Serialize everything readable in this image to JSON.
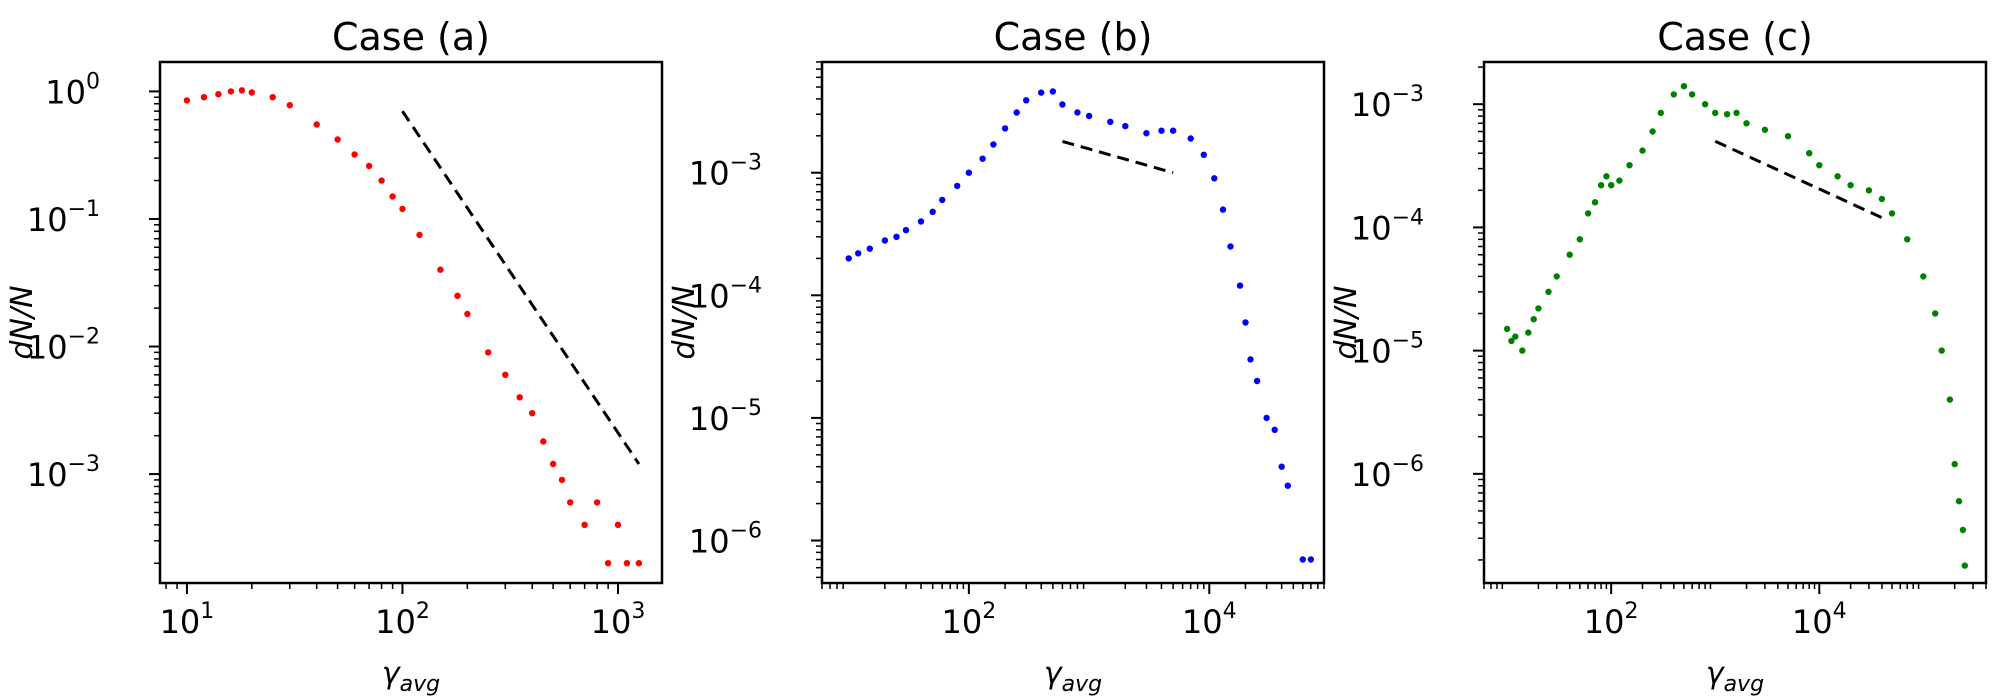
{
  "chart_data": [
    {
      "type": "scatter",
      "title": "Case (a)",
      "xlabel": "γ",
      "xlabel_sub": "avg",
      "ylabel": "dN/N",
      "xscale": "log",
      "yscale": "log",
      "xlim": [
        7.5,
        1600
      ],
      "ylim": [
        0.00014,
        1.7
      ],
      "xticks": [
        {
          "v": 10,
          "base": "10",
          "exp": "1"
        },
        {
          "v": 100,
          "base": "10",
          "exp": "2"
        },
        {
          "v": 1000,
          "base": "10",
          "exp": "3"
        }
      ],
      "yticks": [
        {
          "v": 1,
          "base": "10",
          "exp": "0"
        },
        {
          "v": 0.1,
          "base": "10",
          "exp": "−1"
        },
        {
          "v": 0.01,
          "base": "10",
          "exp": "−2"
        },
        {
          "v": 0.001,
          "base": "10",
          "exp": "−3"
        }
      ],
      "color": "#ff0000",
      "series": [
        {
          "name": "Case (a)",
          "x": [
            10,
            12,
            14,
            16,
            18,
            20,
            25,
            30,
            40,
            50,
            60,
            70,
            80,
            90,
            100,
            120,
            150,
            180,
            200,
            250,
            300,
            350,
            400,
            450,
            500,
            550,
            600,
            700,
            800,
            900,
            1000,
            1100,
            1250
          ],
          "y": [
            0.85,
            0.9,
            0.95,
            1.0,
            1.02,
            0.98,
            0.9,
            0.78,
            0.55,
            0.42,
            0.32,
            0.26,
            0.2,
            0.15,
            0.12,
            0.075,
            0.04,
            0.025,
            0.018,
            0.009,
            0.006,
            0.004,
            0.003,
            0.0018,
            0.0012,
            0.0009,
            0.0006,
            0.0004,
            0.0006,
            0.0002,
            0.0004,
            0.0002,
            0.0002
          ]
        }
      ],
      "reference_line": {
        "x": [
          100,
          1250
        ],
        "y": [
          0.7,
          0.0012
        ],
        "style": "dashed",
        "color": "#000000"
      }
    },
    {
      "type": "scatter",
      "title": "Case (b)",
      "xlabel": "γ",
      "xlabel_sub": "avg",
      "ylabel": "dN/N",
      "xscale": "log",
      "yscale": "log",
      "xlim": [
        6,
        90000
      ],
      "ylim": [
        4.5e-07,
        0.008
      ],
      "xticks": [
        {
          "v": 100,
          "base": "10",
          "exp": "2"
        },
        {
          "v": 10000,
          "base": "10",
          "exp": "4"
        }
      ],
      "yticks": [
        {
          "v": 0.001,
          "base": "10",
          "exp": "−3"
        },
        {
          "v": 0.0001,
          "base": "10",
          "exp": "−4"
        },
        {
          "v": 1e-05,
          "base": "10",
          "exp": "−5"
        },
        {
          "v": 1e-06,
          "base": "10",
          "exp": "−6"
        }
      ],
      "color": "#0000ff",
      "series": [
        {
          "name": "Case (b)",
          "x": [
            10,
            12,
            15,
            20,
            25,
            30,
            40,
            50,
            60,
            80,
            100,
            130,
            160,
            200,
            250,
            300,
            400,
            500,
            600,
            800,
            1000,
            1500,
            2000,
            3000,
            4000,
            5000,
            7000,
            9000,
            11000,
            13000,
            15000,
            18000,
            20000,
            22000,
            25000,
            30000,
            35000,
            40000,
            45000,
            60000,
            70000
          ],
          "y": [
            0.0002,
            0.00022,
            0.00024,
            0.00028,
            0.0003,
            0.00034,
            0.0004,
            0.00048,
            0.0006,
            0.00078,
            0.001,
            0.0013,
            0.0017,
            0.0023,
            0.0031,
            0.0039,
            0.0045,
            0.0046,
            0.0036,
            0.0031,
            0.0029,
            0.0026,
            0.0024,
            0.0021,
            0.0022,
            0.0022,
            0.0019,
            0.0014,
            0.0009,
            0.0005,
            0.00025,
            0.00012,
            6e-05,
            3e-05,
            2e-05,
            1e-05,
            8e-06,
            4e-06,
            2.8e-06,
            7e-07,
            7e-07
          ]
        }
      ],
      "reference_line": {
        "x": [
          600,
          5000
        ],
        "y": [
          0.0018,
          0.001
        ],
        "style": "dashed",
        "color": "#000000"
      }
    },
    {
      "type": "scatter",
      "title": "Case (c)",
      "xlabel": "γ",
      "xlabel_sub": "avg",
      "ylabel": "dN/N",
      "xscale": "log",
      "yscale": "log",
      "xlim": [
        6,
        400000
      ],
      "ylim": [
        1.3e-07,
        0.0022
      ],
      "xticks": [
        {
          "v": 100,
          "base": "10",
          "exp": "2"
        },
        {
          "v": 10000,
          "base": "10",
          "exp": "4"
        }
      ],
      "yticks": [
        {
          "v": 0.001,
          "base": "10",
          "exp": "−3"
        },
        {
          "v": 0.0001,
          "base": "10",
          "exp": "−4"
        },
        {
          "v": 1e-05,
          "base": "10",
          "exp": "−5"
        },
        {
          "v": 1e-06,
          "base": "10",
          "exp": "−6"
        }
      ],
      "color": "#008000",
      "series": [
        {
          "name": "Case (c)",
          "x": [
            10,
            11,
            12,
            14,
            16,
            18,
            20,
            25,
            30,
            40,
            50,
            60,
            70,
            80,
            90,
            100,
            120,
            150,
            200,
            250,
            300,
            400,
            500,
            600,
            800,
            1000,
            1300,
            1600,
            2000,
            3000,
            5000,
            8000,
            10000,
            15000,
            20000,
            30000,
            40000,
            50000,
            70000,
            100000,
            130000,
            150000,
            180000,
            200000,
            220000,
            240000,
            250000
          ],
          "y": [
            1.5e-05,
            1.2e-05,
            1.3e-05,
            1e-05,
            1.4e-05,
            1.8e-05,
            2.2e-05,
            3e-05,
            4e-05,
            6e-05,
            8e-05,
            0.00013,
            0.00016,
            0.00022,
            0.00026,
            0.00022,
            0.00024,
            0.00032,
            0.00042,
            0.0006,
            0.00085,
            0.0012,
            0.0014,
            0.0012,
            0.001,
            0.00085,
            0.00083,
            0.00085,
            0.0007,
            0.00062,
            0.00055,
            0.0004,
            0.00032,
            0.00026,
            0.00022,
            0.0002,
            0.00017,
            0.00013,
            8e-05,
            4e-05,
            2e-05,
            1e-05,
            4e-06,
            1.2e-06,
            6e-07,
            3.5e-07,
            1.8e-07
          ]
        }
      ],
      "reference_line": {
        "x": [
          1000,
          40000
        ],
        "y": [
          0.0005,
          0.00012
        ],
        "style": "dashed",
        "color": "#000000"
      }
    }
  ]
}
